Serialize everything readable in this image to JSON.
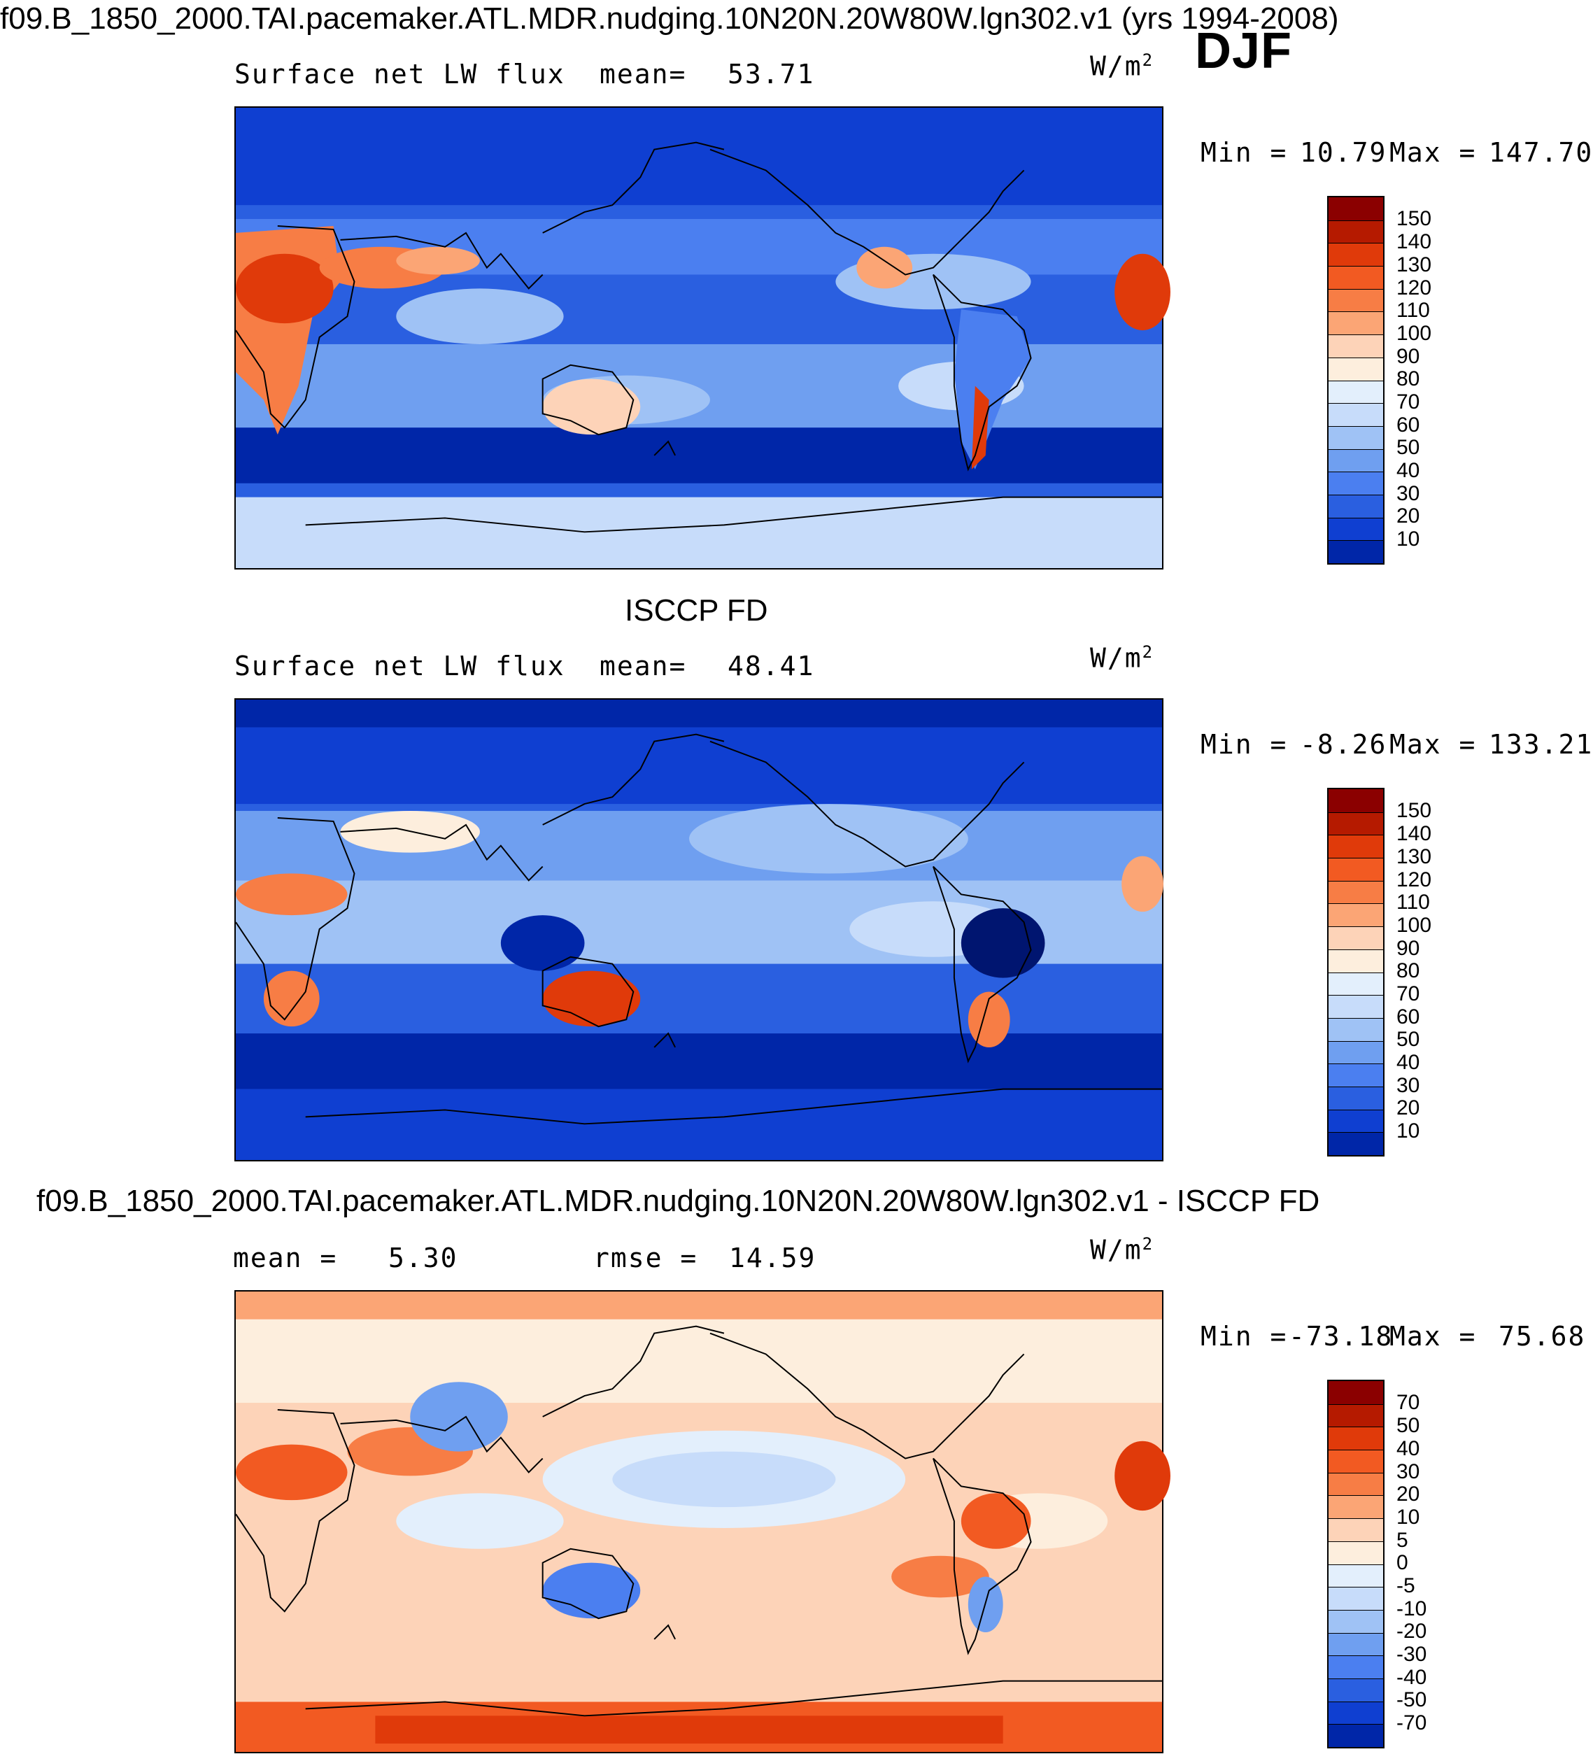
{
  "header": {
    "title": "f09.B_1850_2000.TAI.pacemaker.ATL.MDR.nudging.10N20N.20W80W.lgn302.v1 (yrs 1994-2008)",
    "season": "DJF"
  },
  "panels": [
    {
      "title": "",
      "variable": "Surface net LW flux",
      "stat1_label": "mean=",
      "stat1_value": "53.71",
      "stat2_label": "",
      "stat2_value": "",
      "units": "W/m",
      "units_sup": "2",
      "min_label": "Min =",
      "min_value": "10.79",
      "max_label": "Max =",
      "max_value": "147.70",
      "colorbar": {
        "labels": [
          "150",
          "140",
          "130",
          "120",
          "110",
          "100",
          "90",
          "80",
          "70",
          "60",
          "50",
          "40",
          "30",
          "20",
          "10"
        ],
        "colors": [
          "#8b0000",
          "#b51a00",
          "#e03a0a",
          "#f25a22",
          "#f77d45",
          "#fba575",
          "#fdd3b8",
          "#fdeedd",
          "#e3effc",
          "#c7dcfa",
          "#9fc2f5",
          "#6f9ff0",
          "#4b7ff0",
          "#2a5fe0",
          "#0f3fd1",
          "#0026a8",
          "#001570"
        ]
      }
    },
    {
      "title": "ISCCP FD",
      "variable": "Surface net LW flux",
      "stat1_label": "mean=",
      "stat1_value": "48.41",
      "stat2_label": "",
      "stat2_value": "",
      "units": "W/m",
      "units_sup": "2",
      "min_label": "Min =",
      "min_value": "-8.26",
      "max_label": "Max =",
      "max_value": "133.21",
      "colorbar": {
        "labels": [
          "150",
          "140",
          "130",
          "120",
          "110",
          "100",
          "90",
          "80",
          "70",
          "60",
          "50",
          "40",
          "30",
          "20",
          "10"
        ],
        "colors": [
          "#8b0000",
          "#b51a00",
          "#e03a0a",
          "#f25a22",
          "#f77d45",
          "#fba575",
          "#fdd3b8",
          "#fdeedd",
          "#e3effc",
          "#c7dcfa",
          "#9fc2f5",
          "#6f9ff0",
          "#4b7ff0",
          "#2a5fe0",
          "#0f3fd1",
          "#0026a8",
          "#001570"
        ]
      }
    },
    {
      "title": "f09.B_1850_2000.TAI.pacemaker.ATL.MDR.nudging.10N20N.20W80W.lgn302.v1 - ISCCP FD",
      "variable": "",
      "stat1_label": "mean =",
      "stat1_value": "5.30",
      "stat2_label": "rmse =",
      "stat2_value": "14.59",
      "units": "W/m",
      "units_sup": "2",
      "min_label": "Min =",
      "min_value": "-73.18",
      "max_label": "Max =",
      "max_value": "75.68",
      "colorbar": {
        "labels": [
          "70",
          "50",
          "40",
          "30",
          "20",
          "10",
          "5",
          "0",
          "-5",
          "-10",
          "-20",
          "-30",
          "-40",
          "-50",
          "-70"
        ],
        "colors": [
          "#8b0000",
          "#b51a00",
          "#e03a0a",
          "#f25a22",
          "#f77d45",
          "#fba575",
          "#fdd3b8",
          "#fdeedd",
          "#e3effc",
          "#c7dcfa",
          "#9fc2f5",
          "#6f9ff0",
          "#4b7ff0",
          "#2a5fe0",
          "#0f3fd1",
          "#0026a8",
          "#001570"
        ]
      }
    }
  ]
}
